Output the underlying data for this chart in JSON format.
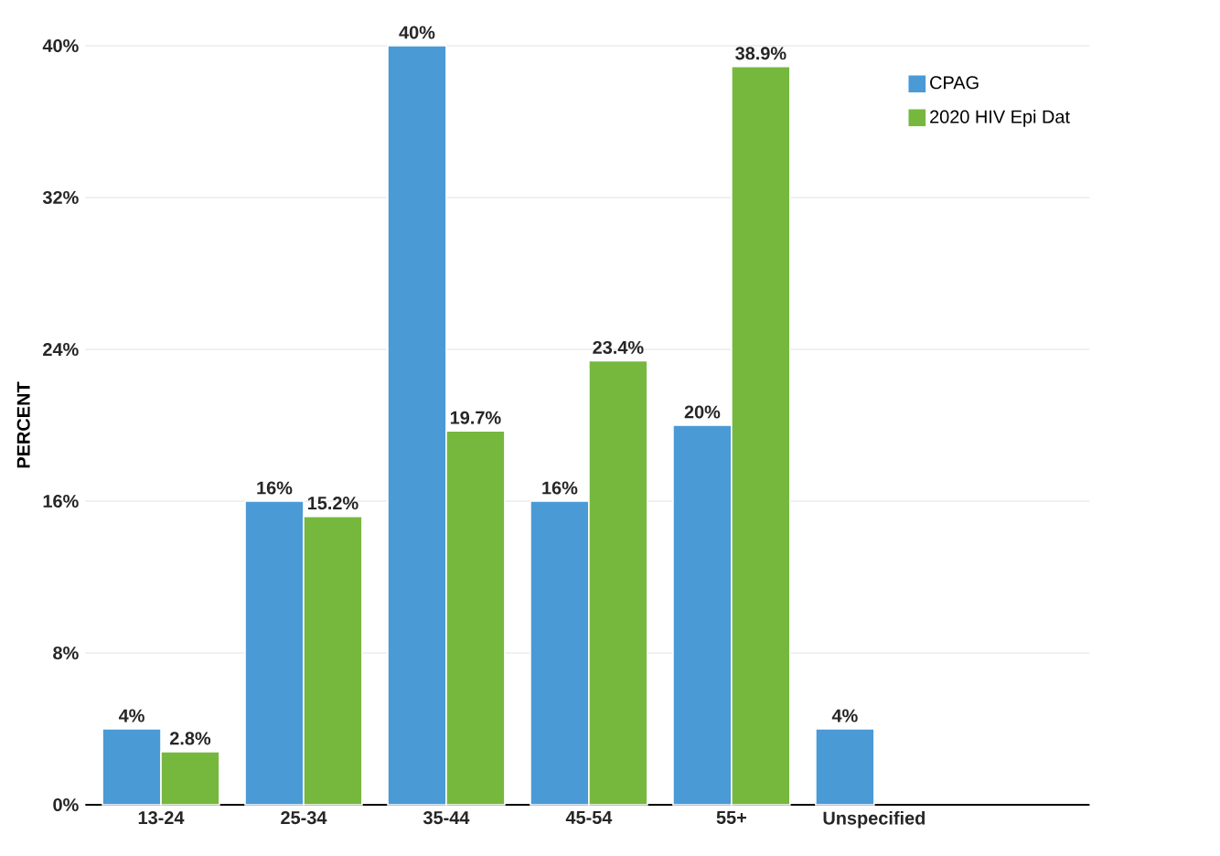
{
  "chart_data": {
    "type": "bar",
    "ylabel": "PERCENT",
    "categories": [
      "13-24",
      "25-34",
      "35-44",
      "45-54",
      "55+",
      "Unspecified"
    ],
    "series": [
      {
        "name": "CPAG",
        "color": "#4a9ad6",
        "values": [
          4,
          16,
          40,
          16,
          20,
          4
        ],
        "value_labels": [
          "4%",
          "16%",
          "40%",
          "16%",
          "20%",
          "4%"
        ]
      },
      {
        "name": "2020 HIV Epi Dat",
        "color": "#76b83e",
        "values": [
          2.8,
          15.2,
          19.7,
          23.4,
          38.9,
          null
        ],
        "value_labels": [
          "2.8%",
          "15.2%",
          "19.7%",
          "23.4%",
          "38.9%",
          null
        ]
      }
    ],
    "ylim": [
      0,
      40
    ],
    "yticks": [
      {
        "value": 0,
        "label": "0%"
      },
      {
        "value": 8,
        "label": "8%"
      },
      {
        "value": 16,
        "label": "16%"
      },
      {
        "value": 24,
        "label": "24%"
      },
      {
        "value": 32,
        "label": "32%"
      },
      {
        "value": 40,
        "label": "40%"
      }
    ],
    "grid": "y",
    "legend": "top right"
  }
}
